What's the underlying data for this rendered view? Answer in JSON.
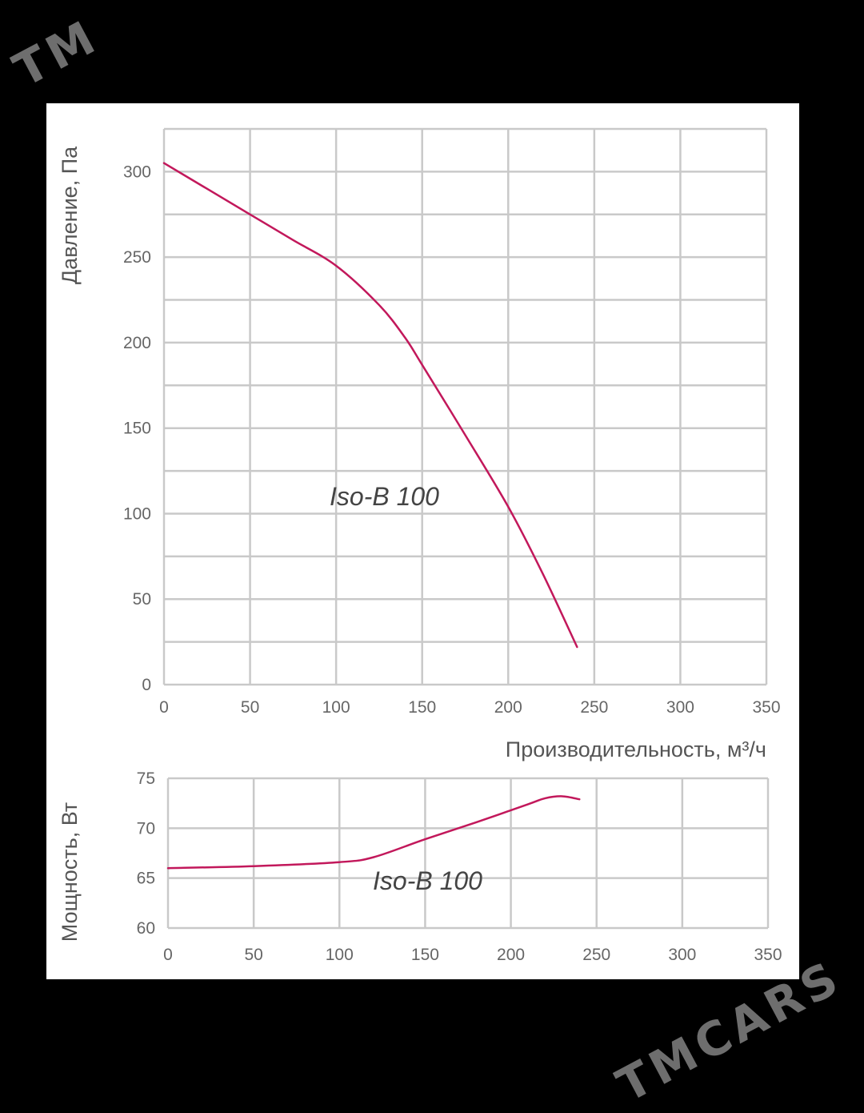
{
  "watermark": {
    "top_left": "TM",
    "bottom_right": "TMCARS"
  },
  "colors": {
    "curve": "#c2185b",
    "background": "#000000",
    "card": "#ffffff",
    "grid": "#c9c9c9"
  },
  "chart_data": [
    {
      "type": "line",
      "title": "",
      "xlabel": "Производительность, м³/ч",
      "ylabel": "Давление, Па",
      "xlim": [
        0,
        350
      ],
      "ylim": [
        0,
        325
      ],
      "x_ticks": [
        0,
        50,
        100,
        150,
        200,
        250,
        300,
        350
      ],
      "y_ticks": [
        0,
        50,
        100,
        150,
        200,
        250,
        300
      ],
      "grid": true,
      "annotation": "Iso-B 100",
      "series": [
        {
          "x": [
            0,
            25,
            50,
            75,
            100,
            125,
            140,
            150,
            175,
            200,
            220,
            240
          ],
          "y": [
            305,
            290,
            275,
            260,
            245,
            222,
            203,
            187,
            146,
            104,
            65,
            22
          ]
        }
      ]
    },
    {
      "type": "line",
      "title": "",
      "xlabel": "",
      "ylabel": "Мощность, Вт",
      "xlim": [
        0,
        350
      ],
      "ylim": [
        60,
        75
      ],
      "x_ticks": [
        0,
        50,
        100,
        150,
        200,
        250,
        300,
        350
      ],
      "y_ticks": [
        60,
        65,
        70,
        75
      ],
      "grid": true,
      "annotation": "Iso-B 100",
      "series": [
        {
          "x": [
            0,
            50,
            100,
            120,
            150,
            180,
            210,
            220,
            230,
            240
          ],
          "y": [
            66,
            66.2,
            66.6,
            67.1,
            68.9,
            70.6,
            72.4,
            73,
            73.2,
            72.9
          ]
        }
      ]
    }
  ]
}
